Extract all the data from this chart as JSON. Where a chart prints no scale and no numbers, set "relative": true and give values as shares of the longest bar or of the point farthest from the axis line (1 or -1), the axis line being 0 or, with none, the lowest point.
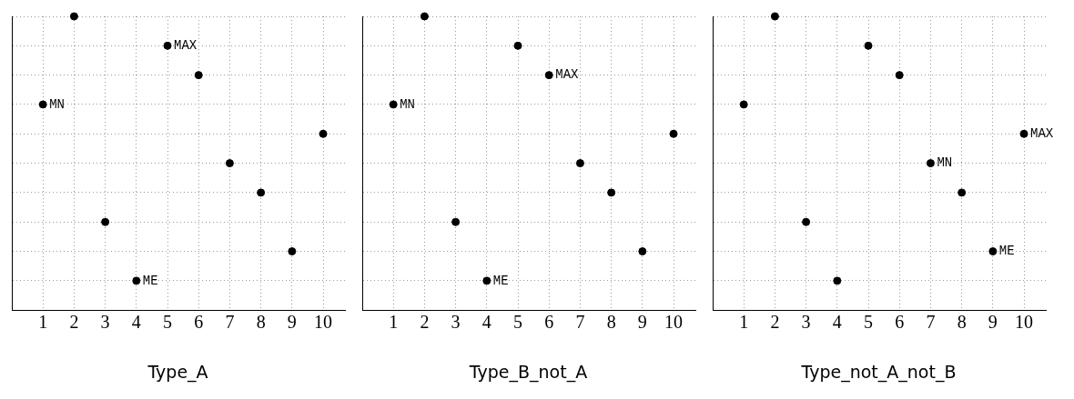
{
  "chart_data": [
    {
      "type": "scatter",
      "title": "Type_A",
      "relative": true,
      "x": [
        1,
        2,
        3,
        4,
        5,
        6,
        7,
        8,
        9,
        10
      ],
      "values": [
        0.7,
        1.0,
        0.3,
        0.1,
        0.9,
        0.8,
        0.5,
        0.4,
        0.2,
        0.6
      ],
      "color": "#000000",
      "marker": "circle",
      "xlim": [
        0,
        10.7
      ],
      "xticks": [
        1,
        2,
        3,
        4,
        5,
        6,
        7,
        8,
        9,
        10
      ],
      "grid": true,
      "tick_labels": "x",
      "annotations": [
        {
          "text": "MN",
          "x": 1,
          "y": 0.7
        },
        {
          "text": "MAX",
          "x": 5,
          "y": 0.9
        },
        {
          "text": "ME",
          "x": 4,
          "y": 0.1
        }
      ]
    },
    {
      "type": "scatter",
      "title": "Type_B_not_A",
      "relative": true,
      "x": [
        1,
        2,
        3,
        4,
        5,
        6,
        7,
        8,
        9,
        10
      ],
      "values": [
        0.7,
        1.0,
        0.3,
        0.1,
        0.9,
        0.8,
        0.5,
        0.4,
        0.2,
        0.6
      ],
      "color": "#000000",
      "marker": "circle",
      "xlim": [
        0,
        10.7
      ],
      "xticks": [
        1,
        2,
        3,
        4,
        5,
        6,
        7,
        8,
        9,
        10
      ],
      "grid": true,
      "tick_labels": "x",
      "annotations": [
        {
          "text": "MN",
          "x": 1,
          "y": 0.7
        },
        {
          "text": "MAX",
          "x": 6,
          "y": 0.8
        },
        {
          "text": "ME",
          "x": 4,
          "y": 0.1
        }
      ]
    },
    {
      "type": "scatter",
      "title": "Type_not_A_not_B",
      "relative": true,
      "x": [
        1,
        2,
        3,
        4,
        5,
        6,
        7,
        8,
        9,
        10
      ],
      "values": [
        0.7,
        1.0,
        0.3,
        0.1,
        0.9,
        0.8,
        0.5,
        0.4,
        0.2,
        0.6
      ],
      "color": "#000000",
      "marker": "circle",
      "xlim": [
        0,
        10.7
      ],
      "xticks": [
        1,
        2,
        3,
        4,
        5,
        6,
        7,
        8,
        9,
        10
      ],
      "grid": true,
      "tick_labels": "x",
      "annotations": [
        {
          "text": "MAX",
          "x": 10,
          "y": 0.6
        },
        {
          "text": "MN",
          "x": 7,
          "y": 0.5
        },
        {
          "text": "ME",
          "x": 9,
          "y": 0.2
        }
      ]
    }
  ]
}
